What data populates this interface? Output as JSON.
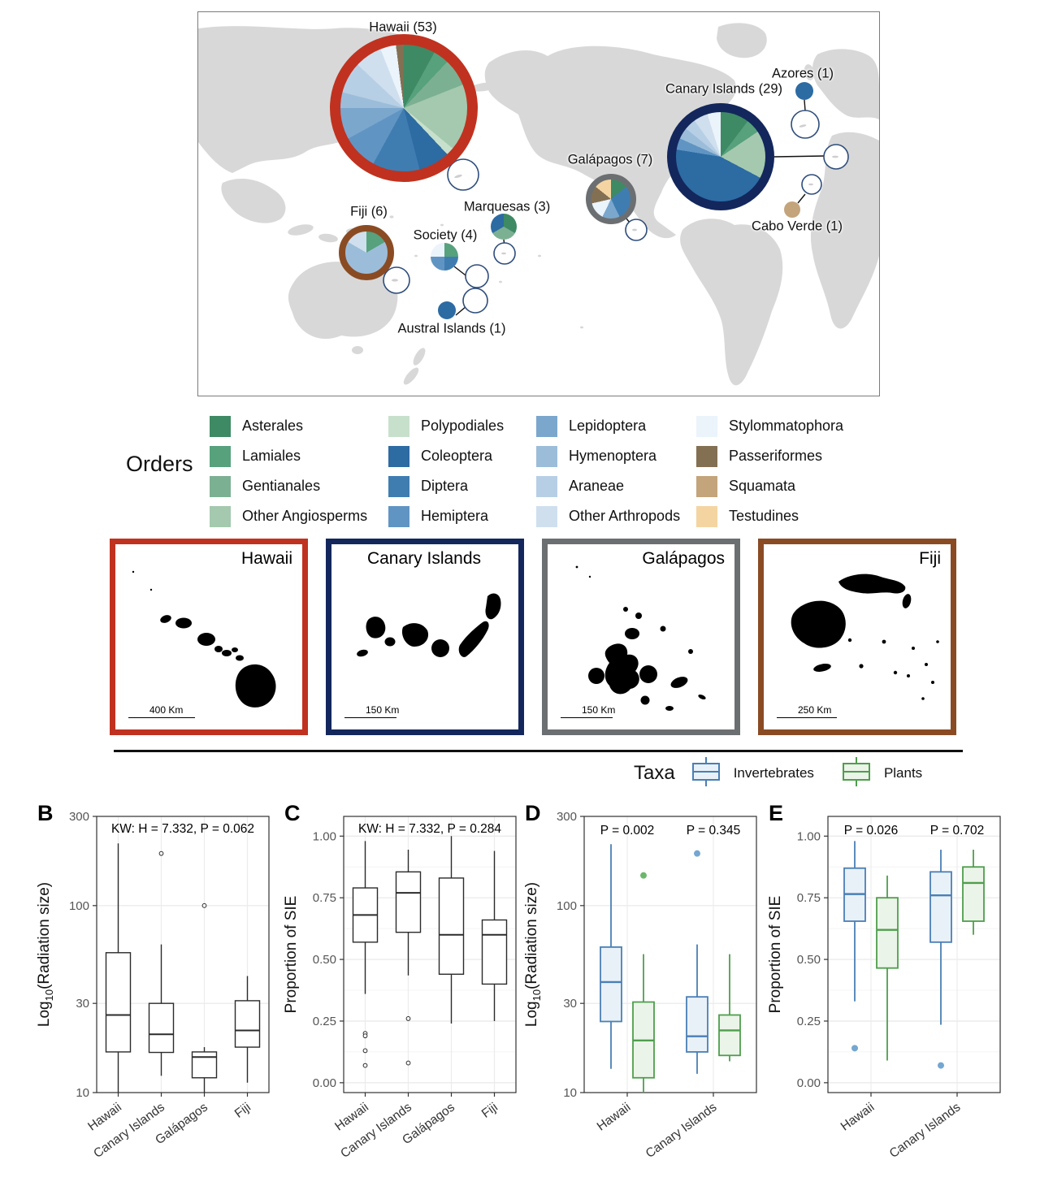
{
  "map": {
    "pies": [
      {
        "name": "Hawaii",
        "label": "Hawaii (53)",
        "count": 53,
        "ring_color": "#c0321f",
        "slices": [
          {
            "order": "Asterales",
            "value": 8
          },
          {
            "order": "Lamiales",
            "value": 4
          },
          {
            "order": "Gentianales",
            "value": 7
          },
          {
            "order": "Other Angiosperms",
            "value": 17
          },
          {
            "order": "Polypodiales",
            "value": 2
          },
          {
            "order": "Coleoptera",
            "value": 8
          },
          {
            "order": "Diptera",
            "value": 12
          },
          {
            "order": "Hemiptera",
            "value": 9
          },
          {
            "order": "Lepidoptera",
            "value": 8
          },
          {
            "order": "Hymenoptera",
            "value": 4
          },
          {
            "order": "Araneae",
            "value": 8
          },
          {
            "order": "Other Arthropods",
            "value": 7
          },
          {
            "order": "Stylommatophora",
            "value": 4
          },
          {
            "order": "Passeriformes",
            "value": 2
          }
        ]
      },
      {
        "name": "Canary Islands",
        "label": "Canary Islands (29)",
        "count": 29,
        "ring_color": "#13275c",
        "slices": [
          {
            "order": "Asterales",
            "value": 3
          },
          {
            "order": "Lamiales",
            "value": 1.5
          },
          {
            "order": "Other Angiosperms",
            "value": 5
          },
          {
            "order": "Coleoptera",
            "value": 13
          },
          {
            "order": "Hemiptera",
            "value": 1.2
          },
          {
            "order": "Hymenoptera",
            "value": 1.2
          },
          {
            "order": "Araneae",
            "value": 1.2
          },
          {
            "order": "Other Arthropods",
            "value": 1.5
          },
          {
            "order": "Stylommatophora",
            "value": 1.4
          }
        ]
      },
      {
        "name": "Galápagos",
        "label": "Galápagos  (7)",
        "count": 7,
        "ring_color": "#6c6f71",
        "slices": [
          {
            "order": "Asterales",
            "value": 1
          },
          {
            "order": "Diptera",
            "value": 2
          },
          {
            "order": "Lepidoptera",
            "value": 1
          },
          {
            "order": "Stylommatophora",
            "value": 1
          },
          {
            "order": "Passeriformes",
            "value": 1
          },
          {
            "order": "Testudines",
            "value": 1
          }
        ]
      },
      {
        "name": "Fiji",
        "label": "Fiji (6)",
        "count": 6,
        "ring_color": "#8a4b23",
        "slices": [
          {
            "order": "Lamiales",
            "value": 1
          },
          {
            "order": "Hymenoptera",
            "value": 4
          },
          {
            "order": "Other Arthropods",
            "value": 1
          }
        ]
      },
      {
        "name": "Society",
        "label": "Society (4)",
        "count": 4,
        "ring_color": null,
        "slices": [
          {
            "order": "Lamiales",
            "value": 1
          },
          {
            "order": "Diptera",
            "value": 1
          },
          {
            "order": "Hemiptera",
            "value": 1
          },
          {
            "order": "Stylommatophora",
            "value": 1
          }
        ]
      },
      {
        "name": "Marquesas",
        "label": "Marquesas (3)",
        "count": 3,
        "ring_color": null,
        "slices": [
          {
            "order": "Asterales",
            "value": 1
          },
          {
            "order": "Gentianales",
            "value": 1
          },
          {
            "order": "Coleoptera",
            "value": 1
          }
        ]
      },
      {
        "name": "Austral Islands",
        "label": "Austral Islands (1)",
        "count": 1,
        "ring_color": null,
        "slices": [
          {
            "order": "Coleoptera",
            "value": 1
          }
        ]
      },
      {
        "name": "Azores",
        "label": "Azores (1)",
        "count": 1,
        "ring_color": null,
        "slices": [
          {
            "order": "Coleoptera",
            "value": 1
          }
        ]
      },
      {
        "name": "Cabo Verde",
        "label": "Cabo Verde (1)",
        "count": 1,
        "ring_color": null,
        "slices": [
          {
            "order": "Squamata",
            "value": 1
          }
        ]
      }
    ]
  },
  "orders_legend": {
    "title": "Orders",
    "items": [
      {
        "label": "Asterales",
        "color": "#3e8a64"
      },
      {
        "label": "Lamiales",
        "color": "#57a17d"
      },
      {
        "label": "Gentianales",
        "color": "#7cb093"
      },
      {
        "label": "Other Angiosperms",
        "color": "#a4c9ae"
      },
      {
        "label": "Polypodiales",
        "color": "#c7e0cc"
      },
      {
        "label": "Coleoptera",
        "color": "#2d6ba3"
      },
      {
        "label": "Diptera",
        "color": "#3f7db1"
      },
      {
        "label": "Hemiptera",
        "color": "#6095c3"
      },
      {
        "label": "Lepidoptera",
        "color": "#7ba7cd"
      },
      {
        "label": "Hymenoptera",
        "color": "#9cbdd9"
      },
      {
        "label": "Araneae",
        "color": "#b7cfe5"
      },
      {
        "label": "Other Arthropods",
        "color": "#cfdfee"
      },
      {
        "label": "Stylommatophora",
        "color": "#ebf3fb"
      },
      {
        "label": "Passeriformes",
        "color": "#837053"
      },
      {
        "label": "Squamata",
        "color": "#c3a47b"
      },
      {
        "label": "Testudines",
        "color": "#f4d5a2"
      }
    ]
  },
  "island_panels": [
    {
      "name": "Hawaii",
      "border_color": "#c0321f",
      "scale_label": "400 Km"
    },
    {
      "name": "Canary Islands",
      "border_color": "#13275c",
      "scale_label": "150 Km"
    },
    {
      "name": "Galápagos",
      "border_color": "#6c6f71",
      "scale_label": "150 Km"
    },
    {
      "name": "Fiji",
      "border_color": "#8a4b23",
      "scale_label": "250 Km"
    }
  ],
  "taxa_legend": {
    "title": "Taxa",
    "items": [
      {
        "label": "Invertebrates",
        "stroke": "#4a7fb5",
        "fill": "#e9f1f8",
        "point": "#74a7d2"
      },
      {
        "label": "Plants",
        "stroke": "#4f9e4d",
        "fill": "#ebf4e8",
        "point": "#6cb86a"
      }
    ]
  },
  "chart_data": [
    {
      "id": "B",
      "type": "boxplot",
      "stats": [
        "KW: H = 7.332, P = 0.062"
      ],
      "ylabel": "Log10(Radiation size)",
      "yscale": "log",
      "ylim": [
        10,
        300
      ],
      "yticks": [
        {
          "v": 10,
          "label": "10"
        },
        {
          "v": 30,
          "label": "30"
        },
        {
          "v": 100,
          "label": "100"
        },
        {
          "v": 300,
          "label": "300"
        }
      ],
      "categories": [
        "Hawaii",
        "Canary Islands",
        "Galápagos",
        "Fiji"
      ],
      "boxes": [
        {
          "category": "Hawaii",
          "series": null,
          "whislo": 10,
          "q1": 16.5,
          "med": 26,
          "q3": 56,
          "whishi": 215,
          "outliers": []
        },
        {
          "category": "Canary Islands",
          "series": null,
          "whislo": 12.3,
          "q1": 16.4,
          "med": 20.5,
          "q3": 30,
          "whishi": 62,
          "outliers": [
            190
          ]
        },
        {
          "category": "Galápagos",
          "series": null,
          "whislo": 10,
          "q1": 12,
          "med": 15.5,
          "q3": 16.5,
          "whishi": 17.5,
          "outliers": [
            100
          ]
        },
        {
          "category": "Fiji",
          "series": null,
          "whislo": 11.3,
          "q1": 17.5,
          "med": 21.5,
          "q3": 31,
          "whishi": 42,
          "outliers": []
        }
      ]
    },
    {
      "id": "C",
      "type": "boxplot",
      "stats": [
        "KW: H = 7.332, P = 0.284"
      ],
      "ylabel": "Proportion of SIE",
      "yscale": "linear",
      "ylim": [
        -0.04,
        1.08
      ],
      "yticks": [
        {
          "v": 0,
          "label": "0.00"
        },
        {
          "v": 0.25,
          "label": "0.25"
        },
        {
          "v": 0.5,
          "label": "0.50"
        },
        {
          "v": 0.75,
          "label": "0.75"
        },
        {
          "v": 1,
          "label": "1.00"
        }
      ],
      "categories": [
        "Hawaii",
        "Canary Islands",
        "Galápagos",
        "Fiji"
      ],
      "boxes": [
        {
          "category": "Hawaii",
          "series": null,
          "whislo": 0.36,
          "q1": 0.57,
          "med": 0.68,
          "q3": 0.79,
          "whishi": 0.98,
          "outliers": [
            0.2,
            0.19,
            0.13,
            0.07
          ]
        },
        {
          "category": "Canary Islands",
          "series": null,
          "whislo": 0.435,
          "q1": 0.61,
          "med": 0.77,
          "q3": 0.855,
          "whishi": 0.945,
          "outliers": [
            0.26,
            0.08
          ]
        },
        {
          "category": "Galápagos",
          "series": null,
          "whislo": 0.24,
          "q1": 0.44,
          "med": 0.6,
          "q3": 0.83,
          "whishi": 1.0,
          "outliers": []
        },
        {
          "category": "Fiji",
          "series": null,
          "whislo": 0.25,
          "q1": 0.4,
          "med": 0.6,
          "q3": 0.66,
          "whishi": 0.94,
          "outliers": []
        }
      ]
    },
    {
      "id": "D",
      "type": "boxplot",
      "stats": [
        "P = 0.002",
        "P = 0.345"
      ],
      "ylabel": "Log10(Radiation size)",
      "yscale": "log",
      "ylim": [
        10,
        300
      ],
      "yticks": [
        {
          "v": 10,
          "label": "10"
        },
        {
          "v": 30,
          "label": "30"
        },
        {
          "v": 100,
          "label": "100"
        },
        {
          "v": 300,
          "label": "300"
        }
      ],
      "categories": [
        "Hawaii",
        "Canary Islands"
      ],
      "boxes": [
        {
          "category": "Hawaii",
          "series": "Invertebrates",
          "whislo": 13.4,
          "q1": 24,
          "med": 39,
          "q3": 60,
          "whishi": 213,
          "outliers": []
        },
        {
          "category": "Hawaii",
          "series": "Plants",
          "whislo": 10,
          "q1": 12,
          "med": 19,
          "q3": 30.5,
          "whishi": 55,
          "outliers": [
            145
          ]
        },
        {
          "category": "Canary Islands",
          "series": "Invertebrates",
          "whislo": 12.6,
          "q1": 16.5,
          "med": 20,
          "q3": 32.5,
          "whishi": 62,
          "outliers": [
            190
          ]
        },
        {
          "category": "Canary Islands",
          "series": "Plants",
          "whislo": 14.7,
          "q1": 15.8,
          "med": 21.5,
          "q3": 26,
          "whishi": 55,
          "outliers": []
        }
      ]
    },
    {
      "id": "E",
      "type": "boxplot",
      "stats": [
        "P = 0.026",
        "P = 0.702"
      ],
      "ylabel": "Proportion of SIE",
      "yscale": "linear",
      "ylim": [
        -0.04,
        1.08
      ],
      "yticks": [
        {
          "v": 0,
          "label": "0.00"
        },
        {
          "v": 0.25,
          "label": "0.25"
        },
        {
          "v": 0.5,
          "label": "0.50"
        },
        {
          "v": 0.75,
          "label": "0.75"
        },
        {
          "v": 1,
          "label": "1.00"
        }
      ],
      "categories": [
        "Hawaii",
        "Canary Islands"
      ],
      "boxes": [
        {
          "category": "Hawaii",
          "series": "Invertebrates",
          "whislo": 0.33,
          "q1": 0.655,
          "med": 0.765,
          "q3": 0.87,
          "whishi": 0.98,
          "outliers": [
            0.14
          ]
        },
        {
          "category": "Hawaii",
          "series": "Plants",
          "whislo": 0.09,
          "q1": 0.465,
          "med": 0.62,
          "q3": 0.75,
          "whishi": 0.84,
          "outliers": []
        },
        {
          "category": "Canary Islands",
          "series": "Invertebrates",
          "whislo": 0.235,
          "q1": 0.57,
          "med": 0.76,
          "q3": 0.855,
          "whishi": 0.945,
          "outliers": [
            0.07
          ]
        },
        {
          "category": "Canary Islands",
          "series": "Plants",
          "whislo": 0.6,
          "q1": 0.655,
          "med": 0.81,
          "q3": 0.875,
          "whishi": 0.945,
          "outliers": []
        }
      ]
    }
  ]
}
